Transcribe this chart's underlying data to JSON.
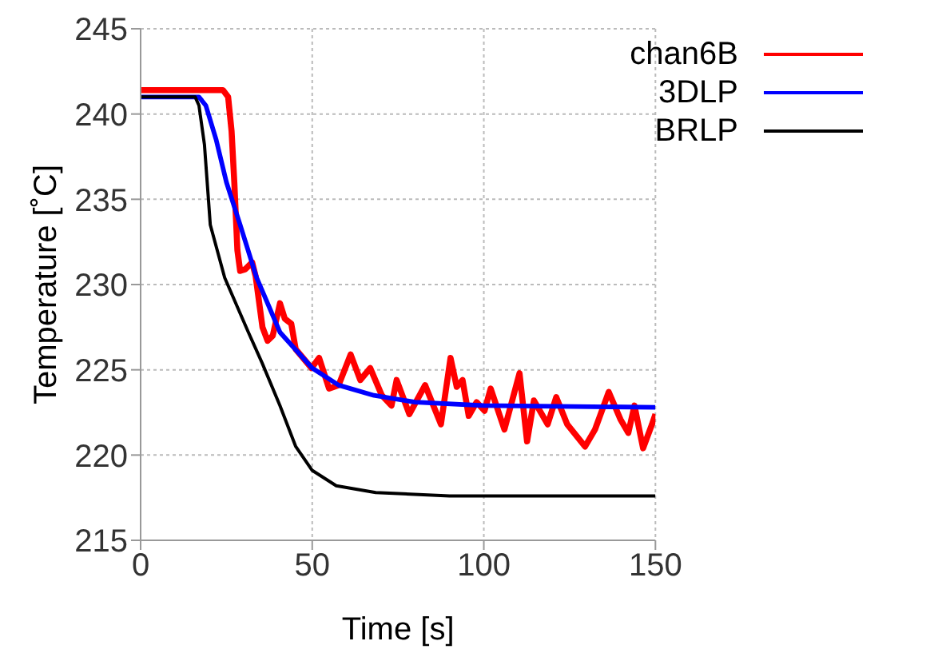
{
  "chart_data": {
    "type": "line",
    "xlabel": "Time [s]",
    "ylabel": "Temperature [˚C]",
    "xlim": [
      0,
      150
    ],
    "xticks": [
      0,
      50,
      100,
      150
    ],
    "ylim": [
      215,
      245
    ],
    "yticks": [
      215,
      220,
      225,
      230,
      235,
      240,
      245
    ],
    "grid": true,
    "legend": "top right",
    "marker": "none",
    "line_style": "solid",
    "series": [
      {
        "name": "chan6B",
        "color": "#ff0000",
        "x": [
          0,
          8,
          16,
          24,
          25.5,
          26.5,
          27.3,
          28.2,
          29,
          30.5,
          32.5,
          33.5,
          35.5,
          37,
          38.5,
          40.6,
          42,
          43.9,
          45.2,
          49.8,
          52,
          54.9,
          57.7,
          61.2,
          64,
          66.9,
          70.3,
          73.1,
          74.6,
          78.3,
          82.9,
          87.5,
          90.3,
          92.1,
          93.8,
          95.6,
          97.9,
          100.2,
          102,
          106,
          110.4,
          112.6,
          114.6,
          118.6,
          121.1,
          124.3,
          129.5,
          132.4,
          136.4,
          139.8,
          142.1,
          143.9,
          146.4,
          149,
          150
        ],
        "values": [
          241.4,
          241.4,
          241.4,
          241.4,
          241,
          239,
          236,
          232,
          230.8,
          230.9,
          231.3,
          230.5,
          227.5,
          226.7,
          227,
          228.9,
          228,
          227.7,
          226.2,
          225.1,
          225.7,
          223.9,
          224.1,
          225.9,
          224.4,
          225.1,
          223.5,
          222.9,
          224.4,
          222.4,
          224.1,
          221.8,
          225.7,
          224,
          224.4,
          222.3,
          223.1,
          222.6,
          223.9,
          221.5,
          224.8,
          220.8,
          223.2,
          221.8,
          223.4,
          221.8,
          220.5,
          221.5,
          223.7,
          222.1,
          221.3,
          222.9,
          220.4,
          221.8,
          222.4
        ]
      },
      {
        "name": "3DLP",
        "color": "#0000ff",
        "x": [
          0,
          17,
          19,
          22,
          25,
          29,
          33.8,
          40.6,
          50,
          57.7,
          68,
          80,
          100,
          150
        ],
        "values": [
          241,
          241,
          240.5,
          238.5,
          236,
          233.5,
          230.4,
          227.2,
          225.1,
          224.1,
          223.5,
          223.1,
          222.9,
          222.8
        ]
      },
      {
        "name": "BRLP",
        "color": "#000000",
        "x": [
          0,
          15.9,
          17,
          18.6,
          20.3,
          24.5,
          31.4,
          35.4,
          40.6,
          45.2,
          50,
          57,
          68.5,
          90,
          150
        ],
        "values": [
          241,
          241,
          240.5,
          238.2,
          233.5,
          230.4,
          227.2,
          225.4,
          222.9,
          220.5,
          219.1,
          218.2,
          217.8,
          217.6,
          217.6
        ]
      }
    ]
  }
}
